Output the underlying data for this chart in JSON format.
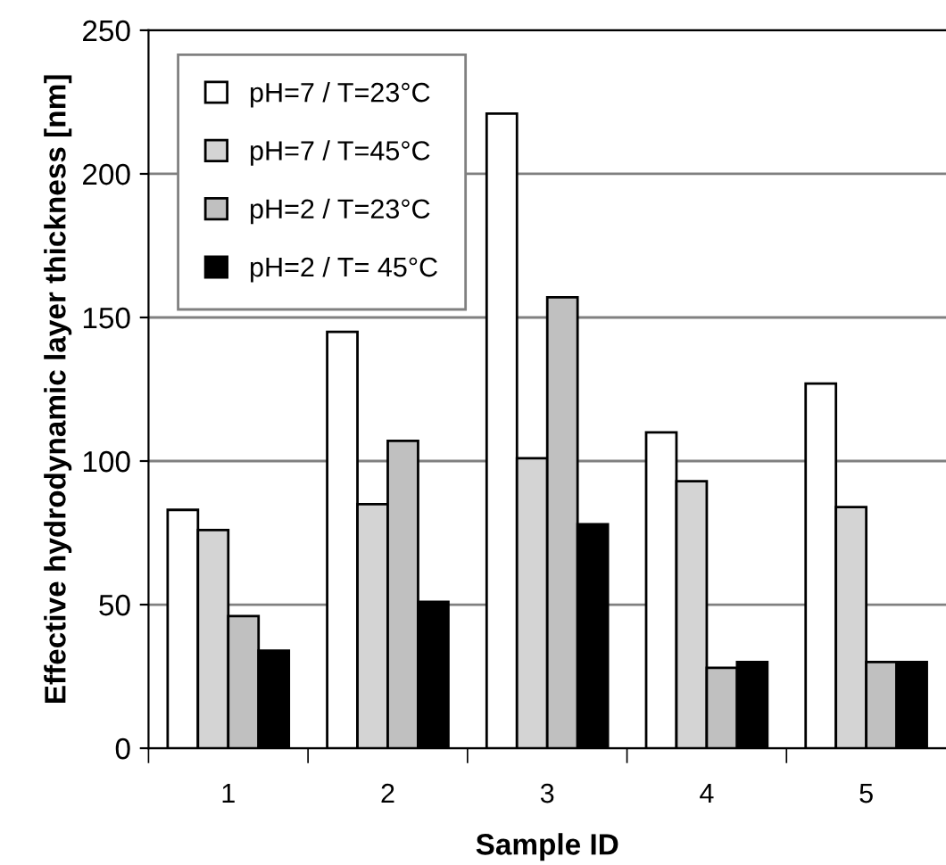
{
  "chart_data": {
    "type": "bar",
    "xlabel": "Sample ID",
    "ylabel": "Effective hydrodynamic layer thickness [nm]",
    "categories": [
      "1",
      "2",
      "3",
      "4",
      "5"
    ],
    "series": [
      {
        "name": "pH=7 / T=23°C",
        "color": "#ffffff",
        "values": [
          83,
          145,
          221,
          110,
          127
        ]
      },
      {
        "name": "pH=7 / T=45°C",
        "color": "#d4d4d4",
        "values": [
          76,
          85,
          101,
          93,
          84
        ]
      },
      {
        "name": "pH=2 / T=23°C",
        "color": "#c0c0c0",
        "values": [
          46,
          107,
          157,
          28,
          30
        ]
      },
      {
        "name": "pH=2 / T= 45°C",
        "color": "#000000",
        "values": [
          34,
          51,
          78,
          30,
          30
        ]
      }
    ],
    "ylim": [
      0,
      250
    ],
    "yticks": [
      0,
      50,
      100,
      150,
      200,
      250
    ],
    "grid": "y",
    "legend": "top left"
  }
}
